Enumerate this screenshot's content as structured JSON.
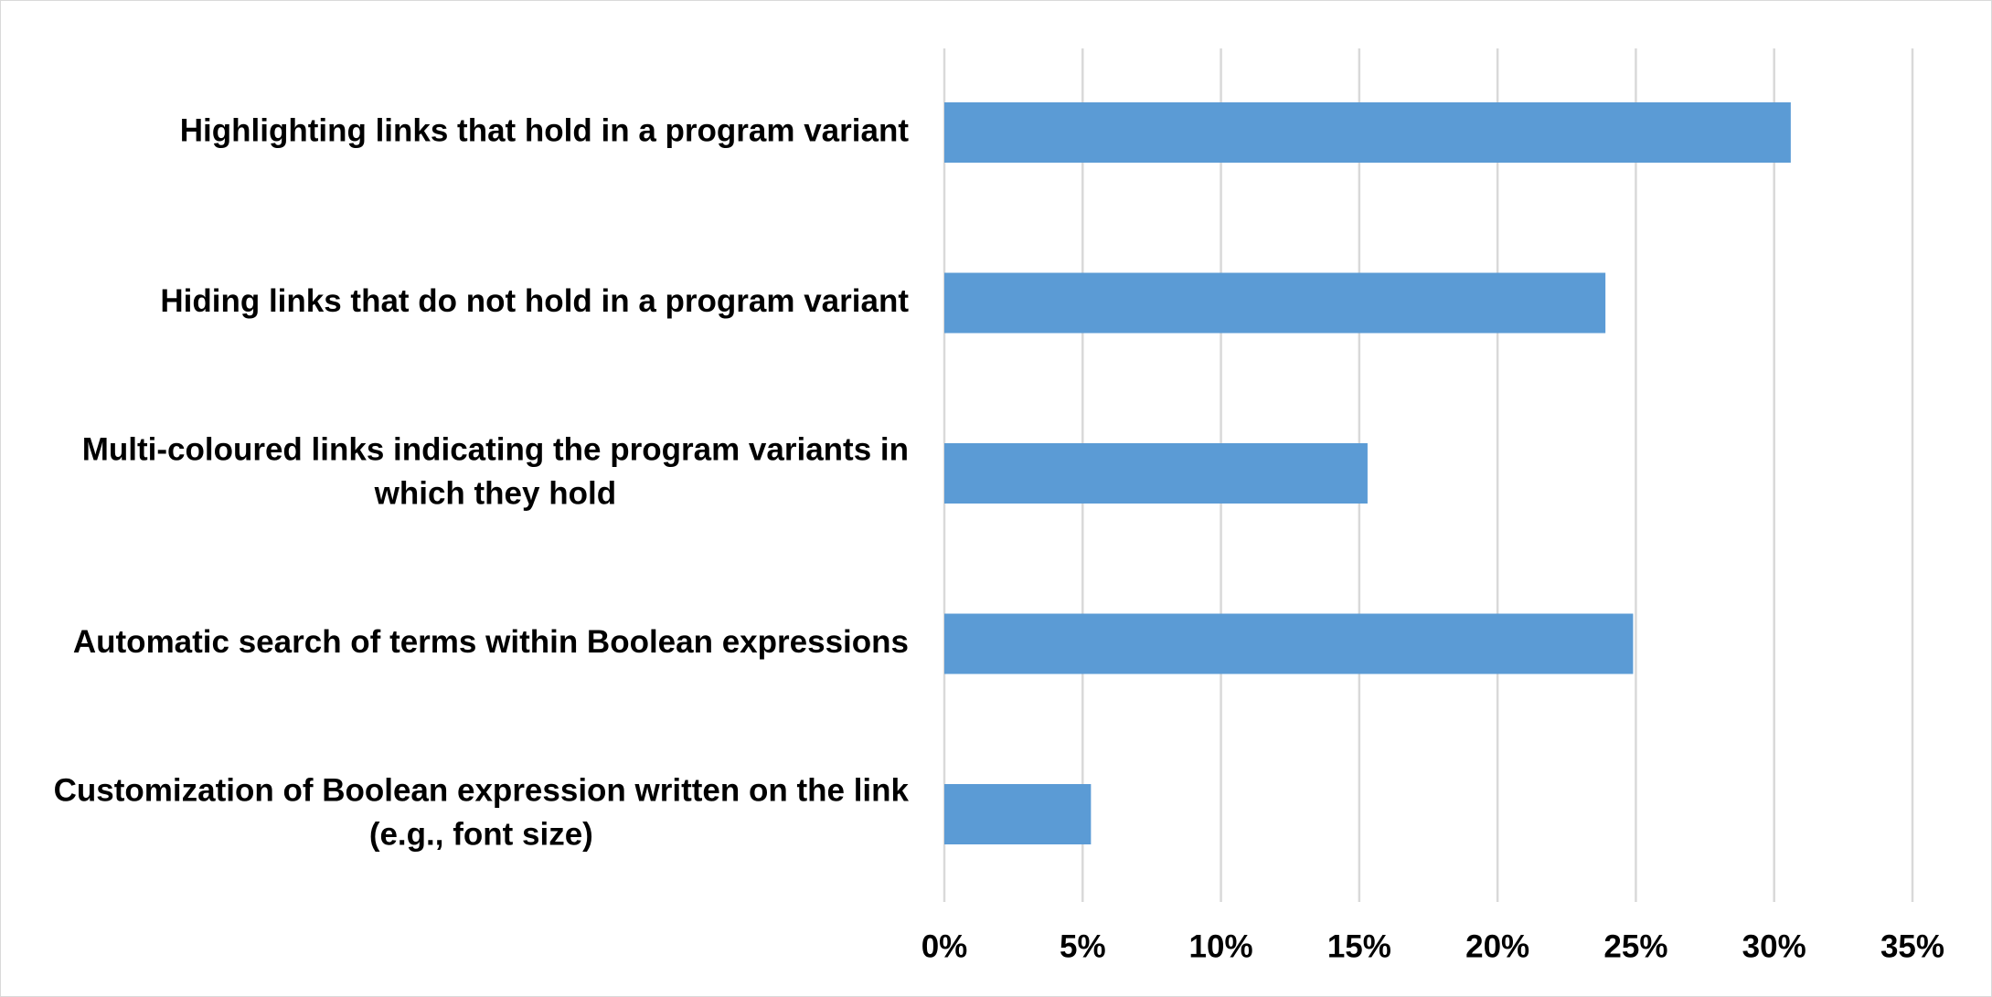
{
  "chart_data": {
    "type": "bar",
    "orientation": "horizontal",
    "title": "",
    "xlabel": "",
    "ylabel": "",
    "categories": [
      "Highlighting links that hold in a program variant",
      "Hiding links that do not hold in a program variant",
      "Multi-coloured links indicating the program variants in which they hold",
      "Automatic search of terms within Boolean expressions",
      "Customization of Boolean expression written on the link (e.g., font size)"
    ],
    "category_lines": [
      [
        "Highlighting links that hold in a program variant"
      ],
      [
        "Hiding links that do not hold in a program variant"
      ],
      [
        "Multi-coloured links indicating the program variants in",
        "which they hold"
      ],
      [
        "Automatic search of terms within Boolean expressions"
      ],
      [
        "Customization of Boolean expression written on the link",
        "(e.g., font size)"
      ]
    ],
    "values": [
      30.6,
      23.9,
      15.3,
      24.9,
      5.3
    ],
    "xlim": [
      0,
      35
    ],
    "xticks": [
      0,
      5,
      10,
      15,
      20,
      25,
      30,
      35
    ],
    "xtick_labels": [
      "0%",
      "5%",
      "10%",
      "15%",
      "20%",
      "25%",
      "30%",
      "35%"
    ],
    "grid": true,
    "legend": false,
    "bar_color": "#5b9bd5",
    "grid_color": "#d9d9d9"
  }
}
